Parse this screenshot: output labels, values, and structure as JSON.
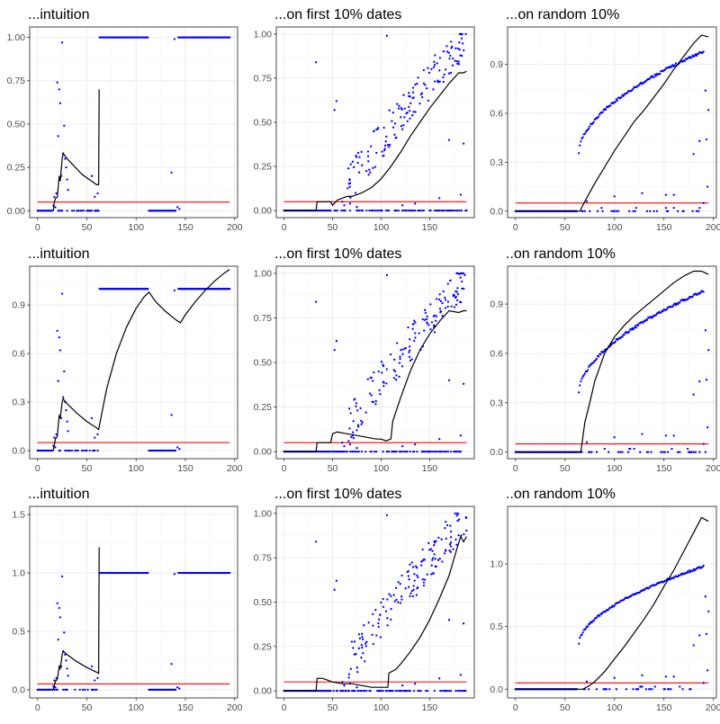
{
  "colors": {
    "points": "#0000ff",
    "curve": "#000000",
    "threshold": "#ff0000",
    "grid_major": "#ebebeb",
    "grid_minor": "#f5f5f5",
    "panel_border": "#333333"
  },
  "chart_data": [
    {
      "type": "scatter",
      "title": "...intuition",
      "xlim": [
        -8,
        203
      ],
      "ylim": [
        -0.04,
        1.06
      ],
      "xticks": [
        0,
        50,
        100,
        150,
        200
      ],
      "xtick_labels": [
        "0",
        "50",
        "100",
        "150",
        "200"
      ],
      "yticks": [
        0,
        0.25,
        0.5,
        0.75,
        1
      ],
      "ytick_labels": [
        "0.00",
        "0.25",
        "0.50",
        "0.75",
        "1.00"
      ],
      "grid": true,
      "threshold": 0.05,
      "points_profile": "intuition",
      "curve": [
        [
          16,
          0
        ],
        [
          17,
          0.05
        ],
        [
          18,
          0.07
        ],
        [
          20,
          0.08
        ],
        [
          22,
          0.2
        ],
        [
          23,
          0.17
        ],
        [
          25,
          0.3
        ],
        [
          26,
          0.33
        ],
        [
          30,
          0.3
        ],
        [
          35,
          0.27
        ],
        [
          40,
          0.24
        ],
        [
          45,
          0.21
        ],
        [
          50,
          0.19
        ],
        [
          55,
          0.17
        ],
        [
          60,
          0.15
        ],
        [
          62,
          0.15
        ],
        [
          62.5,
          0.7
        ]
      ]
    },
    {
      "type": "scatter",
      "title": "...on first 10% dates",
      "xlim": [
        -8,
        196
      ],
      "ylim": [
        -0.04,
        1.04
      ],
      "xticks": [
        0,
        50,
        100,
        150
      ],
      "xtick_labels": [
        "0",
        "50",
        "100",
        "150"
      ],
      "yticks": [
        0,
        0.25,
        0.5,
        0.75,
        1
      ],
      "ytick_labels": [
        "0.00",
        "0.25",
        "0.50",
        "0.75",
        "1.00"
      ],
      "grid": true,
      "threshold": 0.05,
      "points_profile": "first",
      "curve": [
        [
          0,
          0
        ],
        [
          33,
          0
        ],
        [
          34,
          0.05
        ],
        [
          40,
          0.05
        ],
        [
          45,
          0.05
        ],
        [
          48,
          0.05
        ],
        [
          50,
          0.03
        ],
        [
          55,
          0.06
        ],
        [
          60,
          0.07
        ],
        [
          65,
          0.08
        ],
        [
          70,
          0.08
        ],
        [
          80,
          0.1
        ],
        [
          90,
          0.13
        ],
        [
          100,
          0.18
        ],
        [
          110,
          0.25
        ],
        [
          120,
          0.33
        ],
        [
          130,
          0.42
        ],
        [
          140,
          0.5
        ],
        [
          150,
          0.58
        ],
        [
          160,
          0.65
        ],
        [
          170,
          0.72
        ],
        [
          180,
          0.78
        ],
        [
          185,
          0.78
        ],
        [
          188,
          0.79
        ]
      ]
    },
    {
      "type": "scatter",
      "title": "...on random 10%",
      "xlim": [
        -8,
        203
      ],
      "ylim": [
        -0.04,
        1.13
      ],
      "xticks": [
        0,
        50,
        100,
        150,
        200
      ],
      "xtick_labels": [
        "0",
        "50",
        "100",
        "150",
        "200"
      ],
      "yticks": [
        0,
        0.3,
        0.6,
        0.9
      ],
      "ytick_labels": [
        "0.0",
        "0.3",
        "0.6",
        "0.9"
      ],
      "grid": true,
      "threshold": 0.05,
      "points_profile": "random",
      "curve": [
        [
          0,
          0
        ],
        [
          60,
          0
        ],
        [
          65,
          0
        ],
        [
          70,
          0.06
        ],
        [
          80,
          0.17
        ],
        [
          90,
          0.27
        ],
        [
          100,
          0.37
        ],
        [
          110,
          0.46
        ],
        [
          120,
          0.55
        ],
        [
          130,
          0.62
        ],
        [
          140,
          0.7
        ],
        [
          150,
          0.78
        ],
        [
          160,
          0.87
        ],
        [
          170,
          0.95
        ],
        [
          180,
          1.03
        ],
        [
          188,
          1.08
        ],
        [
          195,
          1.07
        ]
      ]
    },
    {
      "type": "scatter",
      "title": "...intuition",
      "xlim": [
        -8,
        203
      ],
      "ylim": [
        -0.05,
        1.14
      ],
      "xticks": [
        0,
        50,
        100,
        150,
        200
      ],
      "xtick_labels": [
        "0",
        "50",
        "100",
        "150",
        "200"
      ],
      "yticks": [
        0,
        0.3,
        0.6,
        0.9
      ],
      "ytick_labels": [
        "0.0",
        "0.3",
        "0.6",
        "0.9"
      ],
      "grid": true,
      "threshold": 0.05,
      "points_profile": "intuition",
      "curve": [
        [
          16,
          0
        ],
        [
          18,
          0.07
        ],
        [
          20,
          0.09
        ],
        [
          22,
          0.22
        ],
        [
          23,
          0.2
        ],
        [
          25,
          0.3
        ],
        [
          26,
          0.32
        ],
        [
          30,
          0.29
        ],
        [
          40,
          0.23
        ],
        [
          50,
          0.18
        ],
        [
          60,
          0.14
        ],
        [
          62,
          0.13
        ],
        [
          70,
          0.38
        ],
        [
          80,
          0.6
        ],
        [
          90,
          0.76
        ],
        [
          100,
          0.88
        ],
        [
          108,
          0.95
        ],
        [
          113,
          0.98
        ],
        [
          120,
          0.92
        ],
        [
          130,
          0.86
        ],
        [
          140,
          0.81
        ],
        [
          145,
          0.79
        ],
        [
          150,
          0.84
        ],
        [
          160,
          0.92
        ],
        [
          170,
          0.99
        ],
        [
          180,
          1.05
        ],
        [
          190,
          1.1
        ],
        [
          195,
          1.12
        ]
      ]
    },
    {
      "type": "scatter",
      "title": "...on first 10% dates",
      "xlim": [
        -8,
        196
      ],
      "ylim": [
        -0.04,
        1.04
      ],
      "xticks": [
        0,
        50,
        100,
        150
      ],
      "xtick_labels": [
        "0",
        "50",
        "100",
        "150"
      ],
      "yticks": [
        0,
        0.25,
        0.5,
        0.75,
        1
      ],
      "ytick_labels": [
        "0.00",
        "0.25",
        "0.50",
        "0.75",
        "1.00"
      ],
      "grid": true,
      "threshold": 0.05,
      "points_profile": "first",
      "curve": [
        [
          0,
          0
        ],
        [
          33,
          0
        ],
        [
          34,
          0.05
        ],
        [
          45,
          0.05
        ],
        [
          48,
          0.05
        ],
        [
          50,
          0.1
        ],
        [
          55,
          0.11
        ],
        [
          65,
          0.1
        ],
        [
          75,
          0.09
        ],
        [
          85,
          0.08
        ],
        [
          95,
          0.07
        ],
        [
          100,
          0.07
        ],
        [
          105,
          0.06
        ],
        [
          110,
          0.07
        ],
        [
          112,
          0.17
        ],
        [
          120,
          0.3
        ],
        [
          130,
          0.45
        ],
        [
          140,
          0.57
        ],
        [
          150,
          0.66
        ],
        [
          160,
          0.73
        ],
        [
          170,
          0.79
        ],
        [
          180,
          0.78
        ],
        [
          185,
          0.79
        ],
        [
          188,
          0.79
        ]
      ]
    },
    {
      "type": "scatter",
      "title": "..on random 10%",
      "xlim": [
        -8,
        203
      ],
      "ylim": [
        -0.04,
        1.13
      ],
      "xticks": [
        0,
        50,
        100,
        150,
        200
      ],
      "xtick_labels": [
        "0",
        "50",
        "100",
        "150",
        "200"
      ],
      "yticks": [
        0,
        0.3,
        0.6,
        0.9
      ],
      "ytick_labels": [
        "0.0",
        "0.3",
        "0.6",
        "0.9"
      ],
      "grid": true,
      "threshold": 0.05,
      "points_profile": "random",
      "curve": [
        [
          0,
          0
        ],
        [
          62,
          0
        ],
        [
          66,
          0
        ],
        [
          70,
          0.18
        ],
        [
          75,
          0.3
        ],
        [
          80,
          0.43
        ],
        [
          90,
          0.6
        ],
        [
          100,
          0.7
        ],
        [
          110,
          0.77
        ],
        [
          120,
          0.83
        ],
        [
          130,
          0.88
        ],
        [
          140,
          0.93
        ],
        [
          150,
          0.98
        ],
        [
          160,
          1.03
        ],
        [
          170,
          1.07
        ],
        [
          180,
          1.1
        ],
        [
          188,
          1.1
        ],
        [
          195,
          1.08
        ]
      ]
    },
    {
      "type": "scatter",
      "title": "...intuition",
      "xlim": [
        -8,
        203
      ],
      "ylim": [
        -0.07,
        1.57
      ],
      "xticks": [
        0,
        50,
        100,
        150,
        200
      ],
      "xtick_labels": [
        "0",
        "50",
        "100",
        "150",
        "200"
      ],
      "yticks": [
        0,
        0.5,
        1,
        1.5
      ],
      "ytick_labels": [
        "0.0",
        "0.5",
        "1.0",
        "1.5"
      ],
      "grid": true,
      "threshold": 0.05,
      "points_profile": "intuition",
      "curve": [
        [
          16,
          0
        ],
        [
          18,
          0.07
        ],
        [
          20,
          0.09
        ],
        [
          22,
          0.2
        ],
        [
          23,
          0.18
        ],
        [
          25,
          0.3
        ],
        [
          26,
          0.33
        ],
        [
          30,
          0.3
        ],
        [
          40,
          0.24
        ],
        [
          50,
          0.19
        ],
        [
          60,
          0.15
        ],
        [
          62,
          0.14
        ],
        [
          62.5,
          1.22
        ]
      ]
    },
    {
      "type": "scatter",
      "title": "...on first 10% dates",
      "xlim": [
        -8,
        196
      ],
      "ylim": [
        -0.04,
        1.04
      ],
      "xticks": [
        0,
        50,
        100,
        150
      ],
      "xtick_labels": [
        "0",
        "50",
        "100",
        "150"
      ],
      "yticks": [
        0,
        0.25,
        0.5,
        0.75,
        1
      ],
      "ytick_labels": [
        "0.00",
        "0.25",
        "0.50",
        "0.75",
        "1.00"
      ],
      "grid": true,
      "threshold": 0.05,
      "points_profile": "first",
      "curve": [
        [
          0,
          0
        ],
        [
          33,
          0
        ],
        [
          34,
          0.07
        ],
        [
          40,
          0.07
        ],
        [
          45,
          0.06
        ],
        [
          50,
          0.05
        ],
        [
          60,
          0.04
        ],
        [
          70,
          0.04
        ],
        [
          80,
          0.03
        ],
        [
          90,
          0.02
        ],
        [
          100,
          0.02
        ],
        [
          107,
          0.02
        ],
        [
          108,
          0.1
        ],
        [
          115,
          0.12
        ],
        [
          120,
          0.15
        ],
        [
          130,
          0.22
        ],
        [
          140,
          0.3
        ],
        [
          150,
          0.4
        ],
        [
          160,
          0.52
        ],
        [
          170,
          0.65
        ],
        [
          178,
          0.8
        ],
        [
          182,
          0.87
        ],
        [
          185,
          0.84
        ],
        [
          188,
          0.87
        ]
      ]
    },
    {
      "type": "scatter",
      "title": "..on random 10%",
      "xlim": [
        -8,
        203
      ],
      "ylim": [
        -0.07,
        1.46
      ],
      "xticks": [
        0,
        50,
        100,
        150,
        200
      ],
      "xtick_labels": [
        "0",
        "50",
        "100",
        "150",
        "200"
      ],
      "yticks": [
        0,
        0.5,
        1
      ],
      "ytick_labels": [
        "0.0",
        "0.5",
        "1.0"
      ],
      "grid": true,
      "threshold": 0.05,
      "points_profile": "random",
      "curve": [
        [
          0,
          0
        ],
        [
          68,
          0
        ],
        [
          75,
          0.03
        ],
        [
          80,
          0.06
        ],
        [
          90,
          0.14
        ],
        [
          100,
          0.24
        ],
        [
          110,
          0.34
        ],
        [
          120,
          0.45
        ],
        [
          130,
          0.56
        ],
        [
          140,
          0.68
        ],
        [
          150,
          0.82
        ],
        [
          160,
          0.95
        ],
        [
          170,
          1.1
        ],
        [
          180,
          1.25
        ],
        [
          188,
          1.37
        ],
        [
          195,
          1.34
        ]
      ]
    }
  ]
}
